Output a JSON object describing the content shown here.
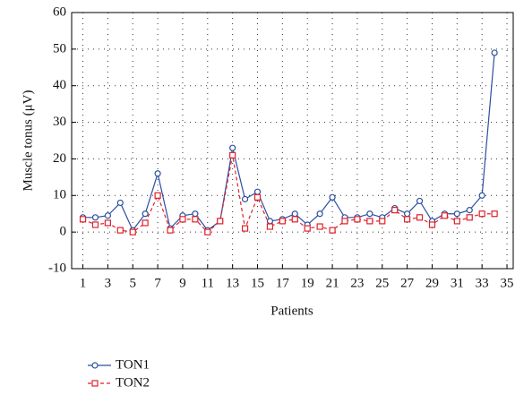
{
  "chart_data": {
    "type": "line",
    "xlabel": "Patients",
    "ylabel": "Muscle tonus (μV)",
    "x": [
      1,
      2,
      3,
      4,
      5,
      6,
      7,
      8,
      9,
      10,
      11,
      12,
      13,
      14,
      15,
      16,
      17,
      18,
      19,
      20,
      21,
      22,
      23,
      24,
      25,
      26,
      27,
      28,
      29,
      30,
      31,
      32,
      33,
      34
    ],
    "series": [
      {
        "name": "TON1",
        "color": "#2b4fa0",
        "dash": false,
        "marker": "circle",
        "values": [
          4,
          4,
          4.5,
          8,
          0.5,
          5,
          16,
          1,
          4.5,
          5,
          0.5,
          3,
          23,
          9,
          11,
          3,
          3.5,
          5,
          2,
          5,
          9.5,
          4,
          4,
          5,
          4,
          6.5,
          5,
          8.5,
          3,
          5,
          5,
          6,
          10,
          49
        ]
      },
      {
        "name": "TON2",
        "color": "#e0202a",
        "dash": true,
        "marker": "square",
        "values": [
          3.5,
          2,
          2.5,
          0.5,
          0,
          2.5,
          10,
          0.5,
          3.5,
          3.5,
          0,
          3,
          21,
          1,
          9.5,
          1.5,
          3,
          3.5,
          1,
          1.5,
          0.5,
          3,
          3.5,
          3,
          3,
          6,
          3.5,
          4,
          2,
          4.5,
          3,
          4,
          5,
          5
        ]
      }
    ],
    "xlim": [
      0.1,
      35.5
    ],
    "xticks": [
      1,
      3,
      5,
      7,
      9,
      11,
      13,
      15,
      17,
      19,
      21,
      23,
      25,
      27,
      29,
      31,
      33,
      35
    ],
    "ylim": [
      -10,
      60
    ],
    "yticks": [
      -10,
      0,
      10,
      20,
      30,
      40,
      50,
      60
    ],
    "grid": true,
    "legend": "bottom-left"
  }
}
